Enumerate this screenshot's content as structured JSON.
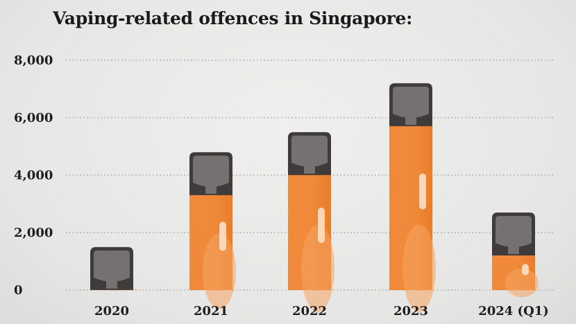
{
  "chart_data": {
    "type": "bar",
    "title": "Vaping-related offences in Singapore:",
    "categories": [
      "2020",
      "2021",
      "2022",
      "2023",
      "2024 (Q1)"
    ],
    "series": [
      {
        "values": [
          100,
          3400,
          4100,
          5800,
          1300
        ]
      }
    ],
    "ylim": [
      0,
      8000
    ],
    "yticks": [
      0,
      2000,
      4000,
      6000,
      8000
    ],
    "ytick_labels": [
      "0",
      "2,000",
      "4,000",
      "6,000",
      "8,000"
    ],
    "xlabel": "",
    "ylabel": "",
    "grid": true,
    "colors": {
      "bar": "#f08a3a",
      "bar_highlight": "#f6a460",
      "pod": "#757170",
      "pod_dark": "#3f3b3a",
      "grid": "#9a9a9a"
    },
    "icons": [
      "vape-pod-icon"
    ]
  }
}
